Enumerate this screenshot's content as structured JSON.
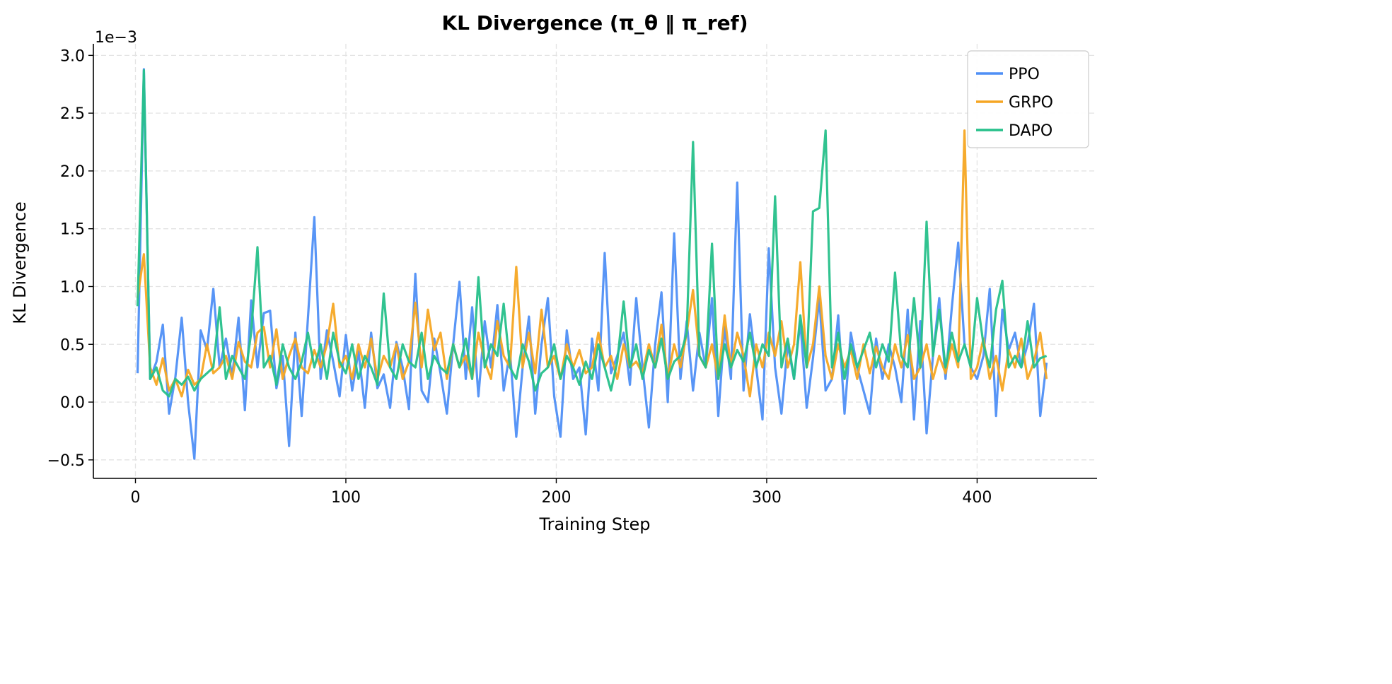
{
  "chart_data": {
    "type": "line",
    "title": "KL Divergence (π_θ ‖ π_ref)",
    "xlabel": "Training Step",
    "ylabel": "KL Divergence",
    "y_offset_label": "1e−3",
    "xlim": [
      -20,
      457
    ],
    "ylim": [
      -0.66,
      3.1
    ],
    "xticks": [
      0,
      100,
      200,
      300,
      400
    ],
    "yticks": [
      -0.5,
      0.0,
      0.5,
      1.0,
      1.5,
      2.0,
      2.5,
      3.0
    ],
    "ytick_labels": [
      "−0.5",
      "0.0",
      "0.5",
      "1.0",
      "1.5",
      "2.0",
      "2.5",
      "3.0"
    ],
    "grid": true,
    "legend_position": "top-right",
    "x": [
      1,
      4,
      7,
      10,
      13,
      16,
      19,
      22,
      25,
      28,
      31,
      34,
      37,
      40,
      43,
      46,
      49,
      52,
      55,
      58,
      61,
      64,
      67,
      70,
      73,
      76,
      79,
      82,
      85,
      88,
      91,
      94,
      97,
      100,
      103,
      106,
      109,
      112,
      115,
      118,
      121,
      124,
      127,
      130,
      133,
      136,
      139,
      142,
      145,
      148,
      151,
      154,
      157,
      160,
      163,
      166,
      169,
      172,
      175,
      178,
      181,
      184,
      187,
      190,
      193,
      196,
      199,
      202,
      205,
      208,
      211,
      214,
      217,
      220,
      223,
      226,
      229,
      232,
      235,
      238,
      241,
      244,
      247,
      250,
      253,
      256,
      259,
      262,
      265,
      268,
      271,
      274,
      277,
      280,
      283,
      286,
      289,
      292,
      295,
      298,
      301,
      304,
      307,
      310,
      313,
      316,
      319,
      322,
      325,
      328,
      331,
      334,
      337,
      340,
      343,
      346,
      349,
      352,
      355,
      358,
      361,
      364,
      367,
      370,
      373,
      376,
      379,
      382,
      385,
      388,
      391,
      394,
      397,
      400,
      403,
      406,
      409,
      412,
      415,
      418,
      421,
      424,
      427,
      430,
      433
    ],
    "series": [
      {
        "name": "PPO",
        "color": "#4f8ff5",
        "values": [
          0.25,
          2.88,
          0.2,
          0.35,
          0.67,
          -0.1,
          0.22,
          0.73,
          0.0,
          -0.49,
          0.62,
          0.45,
          0.98,
          0.3,
          0.55,
          0.22,
          0.73,
          -0.07,
          0.88,
          0.3,
          0.77,
          0.79,
          0.12,
          0.4,
          -0.38,
          0.6,
          -0.12,
          0.73,
          1.6,
          0.2,
          0.62,
          0.35,
          0.05,
          0.58,
          0.1,
          0.44,
          -0.05,
          0.6,
          0.12,
          0.24,
          -0.05,
          0.52,
          0.3,
          -0.06,
          1.11,
          0.1,
          0.0,
          0.55,
          0.25,
          -0.1,
          0.5,
          1.04,
          0.2,
          0.82,
          0.05,
          0.7,
          0.3,
          0.84,
          0.1,
          0.44,
          -0.3,
          0.3,
          0.74,
          -0.1,
          0.5,
          0.9,
          0.05,
          -0.3,
          0.62,
          0.2,
          0.3,
          -0.28,
          0.55,
          0.1,
          1.29,
          0.25,
          0.4,
          0.6,
          0.15,
          0.9,
          0.3,
          -0.22,
          0.5,
          0.95,
          0.0,
          1.46,
          0.2,
          0.7,
          0.1,
          0.6,
          0.3,
          0.9,
          -0.12,
          0.65,
          0.2,
          1.9,
          0.1,
          0.76,
          0.3,
          -0.15,
          1.33,
          0.3,
          -0.1,
          0.5,
          0.2,
          0.7,
          -0.05,
          0.38,
          0.9,
          0.1,
          0.2,
          0.75,
          -0.1,
          0.6,
          0.3,
          0.1,
          -0.1,
          0.55,
          0.2,
          0.5,
          0.3,
          0.0,
          0.8,
          -0.15,
          0.7,
          -0.27,
          0.4,
          0.9,
          0.2,
          0.82,
          1.38,
          0.5,
          0.3,
          0.2,
          0.4,
          0.98,
          -0.12,
          0.8,
          0.45,
          0.6,
          0.3,
          0.5,
          0.85,
          -0.12,
          0.34
        ]
      },
      {
        "name": "GRPO",
        "color": "#f5a623",
        "values": [
          0.9,
          1.28,
          0.3,
          0.15,
          0.38,
          0.1,
          0.2,
          0.05,
          0.28,
          0.15,
          0.2,
          0.5,
          0.25,
          0.3,
          0.4,
          0.2,
          0.52,
          0.35,
          0.3,
          0.6,
          0.65,
          0.3,
          0.63,
          0.2,
          0.4,
          0.55,
          0.3,
          0.25,
          0.45,
          0.3,
          0.5,
          0.85,
          0.3,
          0.4,
          0.2,
          0.5,
          0.3,
          0.55,
          0.2,
          0.4,
          0.3,
          0.5,
          0.2,
          0.35,
          0.86,
          0.3,
          0.8,
          0.45,
          0.6,
          0.2,
          0.5,
          0.3,
          0.4,
          0.2,
          0.6,
          0.35,
          0.2,
          0.7,
          0.4,
          0.3,
          1.17,
          0.3,
          0.6,
          0.25,
          0.8,
          0.3,
          0.4,
          0.2,
          0.5,
          0.3,
          0.45,
          0.25,
          0.3,
          0.6,
          0.3,
          0.4,
          0.2,
          0.5,
          0.3,
          0.35,
          0.25,
          0.5,
          0.3,
          0.67,
          0.2,
          0.5,
          0.3,
          0.6,
          0.97,
          0.4,
          0.3,
          0.5,
          0.2,
          0.75,
          0.3,
          0.6,
          0.4,
          0.05,
          0.5,
          0.3,
          0.6,
          0.4,
          0.7,
          0.3,
          0.5,
          1.21,
          0.3,
          0.5,
          1.0,
          0.4,
          0.2,
          0.5,
          0.3,
          0.45,
          0.2,
          0.5,
          0.25,
          0.48,
          0.3,
          0.2,
          0.5,
          0.3,
          0.58,
          0.2,
          0.3,
          0.5,
          0.2,
          0.4,
          0.25,
          0.5,
          0.3,
          2.35,
          0.2,
          0.3,
          0.55,
          0.2,
          0.4,
          0.1,
          0.45,
          0.3,
          0.55,
          0.2,
          0.35,
          0.6,
          0.2
        ]
      },
      {
        "name": "DAPO",
        "color": "#26c08a",
        "values": [
          0.83,
          2.87,
          0.2,
          0.3,
          0.1,
          0.05,
          0.2,
          0.15,
          0.22,
          0.1,
          0.2,
          0.25,
          0.3,
          0.82,
          0.2,
          0.4,
          0.3,
          0.2,
          0.6,
          1.34,
          0.3,
          0.4,
          0.15,
          0.5,
          0.3,
          0.2,
          0.35,
          0.6,
          0.3,
          0.5,
          0.2,
          0.6,
          0.35,
          0.25,
          0.5,
          0.2,
          0.4,
          0.3,
          0.15,
          0.94,
          0.3,
          0.2,
          0.5,
          0.35,
          0.3,
          0.6,
          0.2,
          0.4,
          0.3,
          0.25,
          0.5,
          0.3,
          0.55,
          0.2,
          1.08,
          0.3,
          0.5,
          0.4,
          0.85,
          0.3,
          0.2,
          0.5,
          0.35,
          0.1,
          0.25,
          0.3,
          0.5,
          0.2,
          0.4,
          0.3,
          0.15,
          0.35,
          0.2,
          0.5,
          0.3,
          0.1,
          0.35,
          0.87,
          0.3,
          0.5,
          0.2,
          0.45,
          0.3,
          0.55,
          0.2,
          0.35,
          0.4,
          0.6,
          2.25,
          0.4,
          0.3,
          1.37,
          0.2,
          0.5,
          0.3,
          0.45,
          0.35,
          0.6,
          0.3,
          0.5,
          0.4,
          1.78,
          0.3,
          0.55,
          0.2,
          0.75,
          0.3,
          1.65,
          1.68,
          2.35,
          0.3,
          0.6,
          0.2,
          0.5,
          0.3,
          0.45,
          0.6,
          0.3,
          0.5,
          0.35,
          1.12,
          0.4,
          0.3,
          0.9,
          0.3,
          1.56,
          0.4,
          0.8,
          0.3,
          0.6,
          0.35,
          0.5,
          0.3,
          0.9,
          0.5,
          0.3,
          0.8,
          1.05,
          0.3,
          0.4,
          0.3,
          0.7,
          0.3,
          0.38,
          0.4
        ]
      }
    ]
  }
}
